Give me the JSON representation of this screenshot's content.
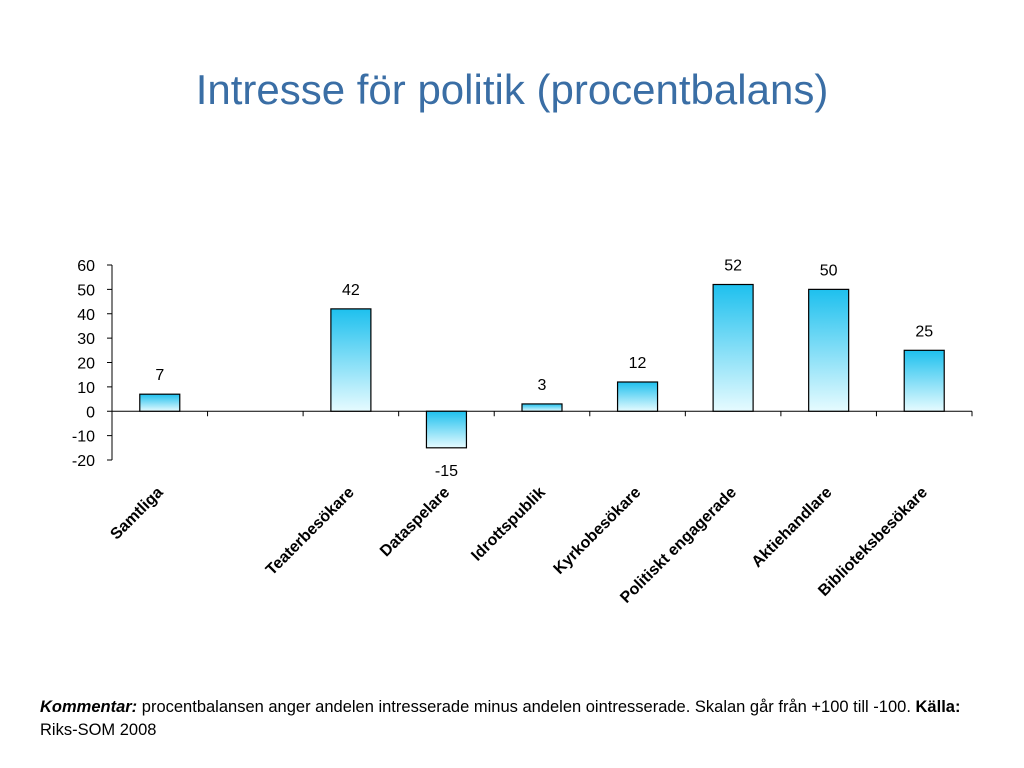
{
  "slide": {
    "title": "Intresse för politik (procentbalans)"
  },
  "note": {
    "kommentar_label": "Kommentar:",
    "kommentar_text": "procentbalansen anger andelen intresserade minus andelen ointresserade. Skalan går från +100 till -100.",
    "kalla_label": "Källa:",
    "kalla_text": "Riks-SOM 2008"
  },
  "colors": {
    "title": "#3a6ea5",
    "bar_top": "#1ec0ee",
    "bar_bottom": "#e6fbff",
    "bar_stroke": "#000000"
  },
  "chart_data": {
    "type": "bar",
    "title": "",
    "xlabel": "",
    "ylabel": "",
    "categories": [
      "Samtliga",
      "Teaterbesökare",
      "Dataspelare",
      "Idrottspublik",
      "Kyrkobesökare",
      "Politiskt engagerade",
      "Aktiehandlare",
      "Biblioteksbesökare"
    ],
    "values": [
      7,
      42,
      -15,
      3,
      12,
      52,
      50,
      25
    ],
    "data_labels": [
      "7",
      "42",
      "-15",
      "3",
      "12",
      "52",
      "50",
      "25"
    ],
    "ylim": [
      -20,
      60
    ],
    "yticks": [
      60,
      50,
      40,
      30,
      20,
      10,
      0,
      -10,
      -20
    ],
    "grid": false,
    "legend": "none"
  }
}
